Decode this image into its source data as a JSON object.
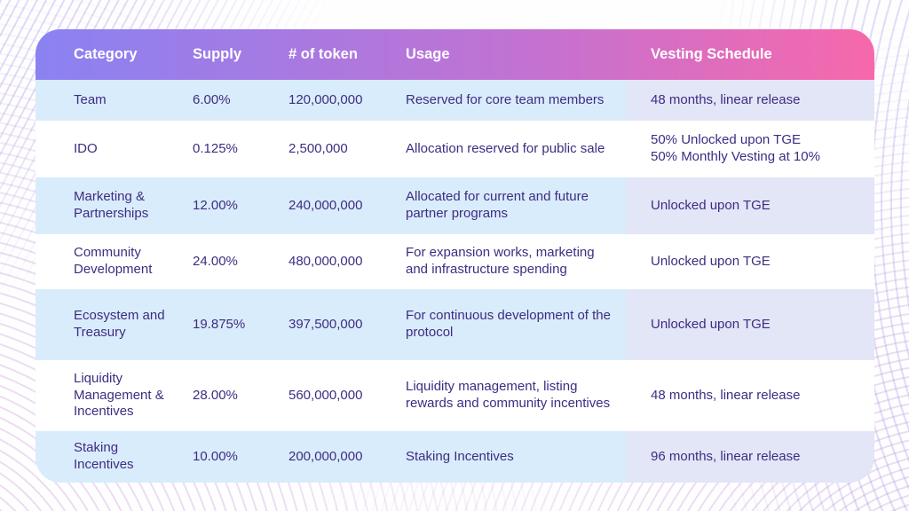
{
  "chart_data": {
    "type": "table",
    "columns": [
      "Category",
      "Supply",
      "# of token",
      "Usage",
      "Vesting Schedule"
    ],
    "rows": [
      [
        "Team",
        "6.00%",
        "120,000,000",
        "Reserved for core team members",
        "48 months, linear release"
      ],
      [
        "IDO",
        "0.125%",
        "2,500,000",
        "Allocation reserved for public sale",
        "50% Unlocked upon TGE\n50% Monthly Vesting at 10%"
      ],
      [
        "Marketing & Partnerships",
        "12.00%",
        "240,000,000",
        "Allocated for current and future partner programs",
        "Unlocked upon TGE"
      ],
      [
        "Community Development",
        "24.00%",
        "480,000,000",
        "For expansion works, marketing and infrastructure spending",
        "Unlocked upon TGE"
      ],
      [
        "Ecosystem and Treasury",
        "19.875%",
        "397,500,000",
        "For continuous development of the protocol",
        "Unlocked upon TGE"
      ],
      [
        "Liquidity Management & Incentives",
        "28.00%",
        "560,000,000",
        "Liquidity management, listing rewards and community incentives",
        "48 months, linear release"
      ],
      [
        "Staking Incentives",
        "10.00%",
        "200,000,000",
        "Staking Incentives",
        "96 months, linear release"
      ]
    ]
  },
  "colors": {
    "header_gradient_start": "#8a82f2",
    "header_gradient_mid": "#c272d2",
    "header_gradient_end": "#f768ab",
    "row_light_blue": "#d9ecfb",
    "row_white": "#ffffff",
    "vesting_cell_lavender": "#e2e6f7",
    "body_text": "#3e2c82",
    "header_text": "#ffffff",
    "background_pattern": "#9482e1"
  }
}
